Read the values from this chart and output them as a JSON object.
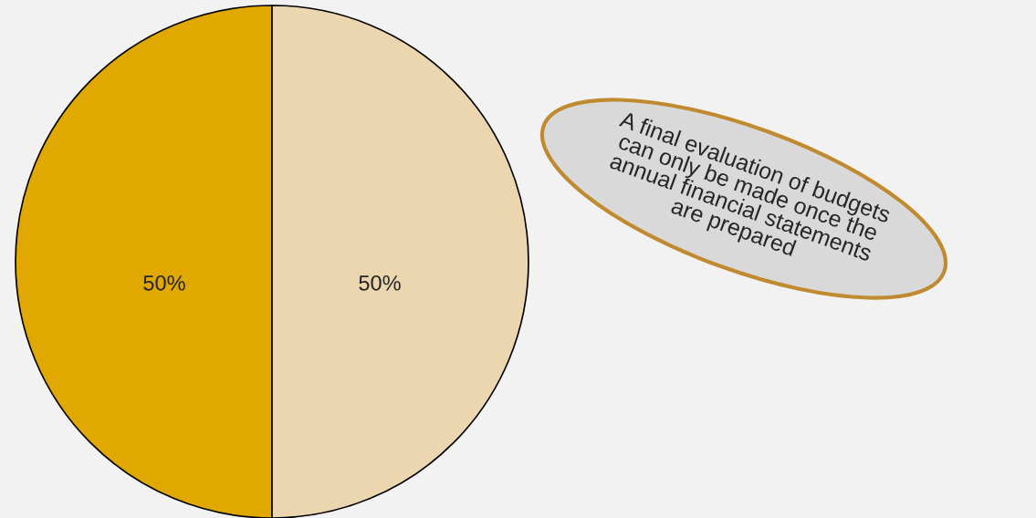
{
  "chart_data": {
    "type": "pie",
    "categories": [
      null,
      null
    ],
    "values": [
      50,
      50
    ],
    "colors": [
      "#e0a800",
      "#ecd6b0"
    ],
    "value_labels": [
      "50%",
      "50%"
    ],
    "annotations": [
      "A final evaluation of budgets\ncan only be made once the\nannual financial statements\nare prepared"
    ]
  }
}
